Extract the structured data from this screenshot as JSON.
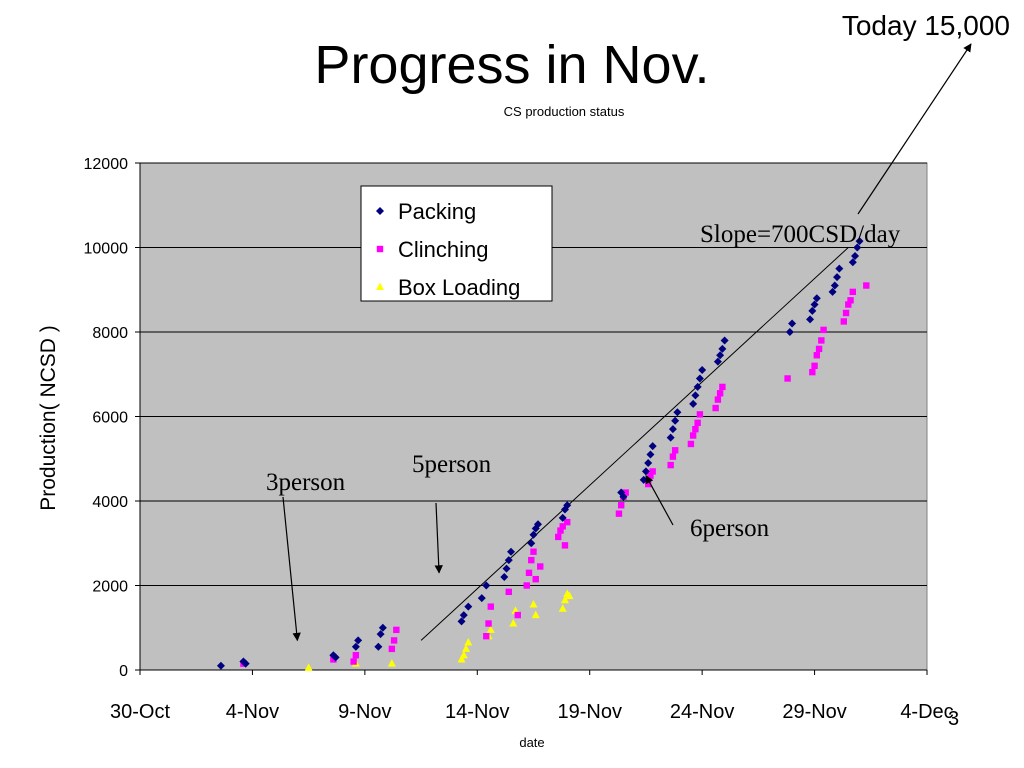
{
  "slide": {
    "title": "Progress in Nov.",
    "today_note": "Today 15,000",
    "page_number": "3"
  },
  "colors": {
    "plot_background": "#c0c0c0",
    "packing": "#000080",
    "clinching": "#ff00ff",
    "box_loading": "#ffff00",
    "gridline": "#000000"
  },
  "chart_data": {
    "type": "scatter",
    "title": "CS production status",
    "xlabel": "date",
    "ylabel": "Production( NCSD )",
    "x_unit": "days from 30-Oct",
    "xlim": [
      0,
      35
    ],
    "ylim": [
      0,
      12000
    ],
    "y_ticks": [
      0,
      2000,
      4000,
      6000,
      8000,
      10000,
      12000
    ],
    "x_ticks": [
      {
        "day": 0,
        "label": "30-Oct"
      },
      {
        "day": 5,
        "label": "4-Nov"
      },
      {
        "day": 10,
        "label": "9-Nov"
      },
      {
        "day": 15,
        "label": "14-Nov"
      },
      {
        "day": 20,
        "label": "19-Nov"
      },
      {
        "day": 25,
        "label": "24-Nov"
      },
      {
        "day": 30,
        "label": "29-Nov"
      },
      {
        "day": 35,
        "label": "4-Dec"
      }
    ],
    "grid": true,
    "legend_position": "top-center",
    "series": [
      {
        "name": "Packing",
        "marker": "diamond",
        "points": [
          [
            3.6,
            100
          ],
          [
            4.6,
            200
          ],
          [
            4.7,
            150
          ],
          [
            8.6,
            350
          ],
          [
            8.7,
            300
          ],
          [
            9.6,
            550
          ],
          [
            9.7,
            700
          ],
          [
            10.6,
            550
          ],
          [
            10.7,
            850
          ],
          [
            10.8,
            1000
          ],
          [
            14.3,
            1150
          ],
          [
            14.4,
            1300
          ],
          [
            14.6,
            1500
          ],
          [
            15.2,
            1700
          ],
          [
            15.4,
            2000
          ],
          [
            16.2,
            2200
          ],
          [
            16.3,
            2400
          ],
          [
            16.4,
            2600
          ],
          [
            16.5,
            2800
          ],
          [
            17.4,
            3000
          ],
          [
            17.5,
            3200
          ],
          [
            17.6,
            3350
          ],
          [
            17.7,
            3450
          ],
          [
            18.8,
            3600
          ],
          [
            18.9,
            3800
          ],
          [
            19.0,
            3900
          ],
          [
            21.4,
            4200
          ],
          [
            21.5,
            4100
          ],
          [
            22.4,
            4500
          ],
          [
            22.5,
            4700
          ],
          [
            22.6,
            4900
          ],
          [
            22.7,
            5100
          ],
          [
            22.8,
            5300
          ],
          [
            23.6,
            5500
          ],
          [
            23.7,
            5700
          ],
          [
            23.8,
            5900
          ],
          [
            23.9,
            6100
          ],
          [
            24.6,
            6300
          ],
          [
            24.7,
            6500
          ],
          [
            24.8,
            6700
          ],
          [
            24.9,
            6900
          ],
          [
            25.0,
            7100
          ],
          [
            25.7,
            7300
          ],
          [
            25.8,
            7450
          ],
          [
            25.9,
            7600
          ],
          [
            26.0,
            7800
          ],
          [
            28.9,
            8000
          ],
          [
            29.0,
            8200
          ],
          [
            29.8,
            8300
          ],
          [
            29.9,
            8500
          ],
          [
            30.0,
            8650
          ],
          [
            30.1,
            8800
          ],
          [
            30.8,
            8950
          ],
          [
            30.9,
            9100
          ],
          [
            31.0,
            9300
          ],
          [
            31.1,
            9500
          ],
          [
            31.7,
            9650
          ],
          [
            31.8,
            9800
          ],
          [
            31.9,
            10000
          ],
          [
            32.0,
            10150
          ]
        ]
      },
      {
        "name": "Clinching",
        "marker": "square",
        "points": [
          [
            4.6,
            150
          ],
          [
            8.6,
            250
          ],
          [
            9.5,
            200
          ],
          [
            9.6,
            350
          ],
          [
            11.2,
            500
          ],
          [
            11.3,
            700
          ],
          [
            11.4,
            950
          ],
          [
            15.4,
            800
          ],
          [
            15.5,
            1100
          ],
          [
            15.6,
            1500
          ],
          [
            16.4,
            1850
          ],
          [
            16.8,
            1300
          ],
          [
            17.2,
            2000
          ],
          [
            17.3,
            2300
          ],
          [
            17.4,
            2600
          ],
          [
            17.5,
            2800
          ],
          [
            17.6,
            2150
          ],
          [
            17.8,
            2450
          ],
          [
            18.6,
            3150
          ],
          [
            18.7,
            3300
          ],
          [
            18.8,
            3400
          ],
          [
            18.9,
            2950
          ],
          [
            19.0,
            3500
          ],
          [
            21.3,
            3700
          ],
          [
            21.4,
            3900
          ],
          [
            21.5,
            4100
          ],
          [
            21.6,
            4200
          ],
          [
            22.6,
            4400
          ],
          [
            22.7,
            4600
          ],
          [
            22.8,
            4700
          ],
          [
            23.6,
            4850
          ],
          [
            23.7,
            5050
          ],
          [
            23.8,
            5200
          ],
          [
            24.5,
            5350
          ],
          [
            24.6,
            5550
          ],
          [
            24.7,
            5700
          ],
          [
            24.8,
            5850
          ],
          [
            24.9,
            6050
          ],
          [
            25.6,
            6200
          ],
          [
            25.7,
            6400
          ],
          [
            25.8,
            6550
          ],
          [
            25.9,
            6700
          ],
          [
            28.8,
            6900
          ],
          [
            29.9,
            7050
          ],
          [
            30.0,
            7200
          ],
          [
            30.1,
            7450
          ],
          [
            30.2,
            7600
          ],
          [
            30.3,
            7800
          ],
          [
            30.4,
            8050
          ],
          [
            31.3,
            8250
          ],
          [
            31.4,
            8450
          ],
          [
            31.5,
            8650
          ],
          [
            31.6,
            8750
          ],
          [
            31.7,
            8950
          ],
          [
            32.3,
            9100
          ]
        ]
      },
      {
        "name": "Box Loading",
        "marker": "triangle",
        "points": [
          [
            7.5,
            50
          ],
          [
            9.6,
            150
          ],
          [
            11.2,
            150
          ],
          [
            14.3,
            250
          ],
          [
            14.4,
            350
          ],
          [
            14.5,
            500
          ],
          [
            14.6,
            650
          ],
          [
            15.5,
            800
          ],
          [
            15.6,
            950
          ],
          [
            16.6,
            1100
          ],
          [
            16.7,
            1400
          ],
          [
            17.5,
            1550
          ],
          [
            17.6,
            1300
          ],
          [
            18.8,
            1450
          ],
          [
            18.9,
            1650
          ],
          [
            19.0,
            1800
          ],
          [
            19.1,
            1750
          ]
        ]
      }
    ],
    "trend_line": {
      "label": "Slope=700CSD/day",
      "from": [
        12.5,
        700
      ],
      "to": [
        31.5,
        10000
      ]
    },
    "annotations": [
      {
        "label": "3person",
        "arrow_to": [
          7.0,
          700
        ]
      },
      {
        "label": "5person",
        "arrow_to": [
          13.3,
          2300
        ]
      },
      {
        "label": "6person",
        "arrow_to": [
          22.5,
          4600
        ]
      }
    ]
  }
}
